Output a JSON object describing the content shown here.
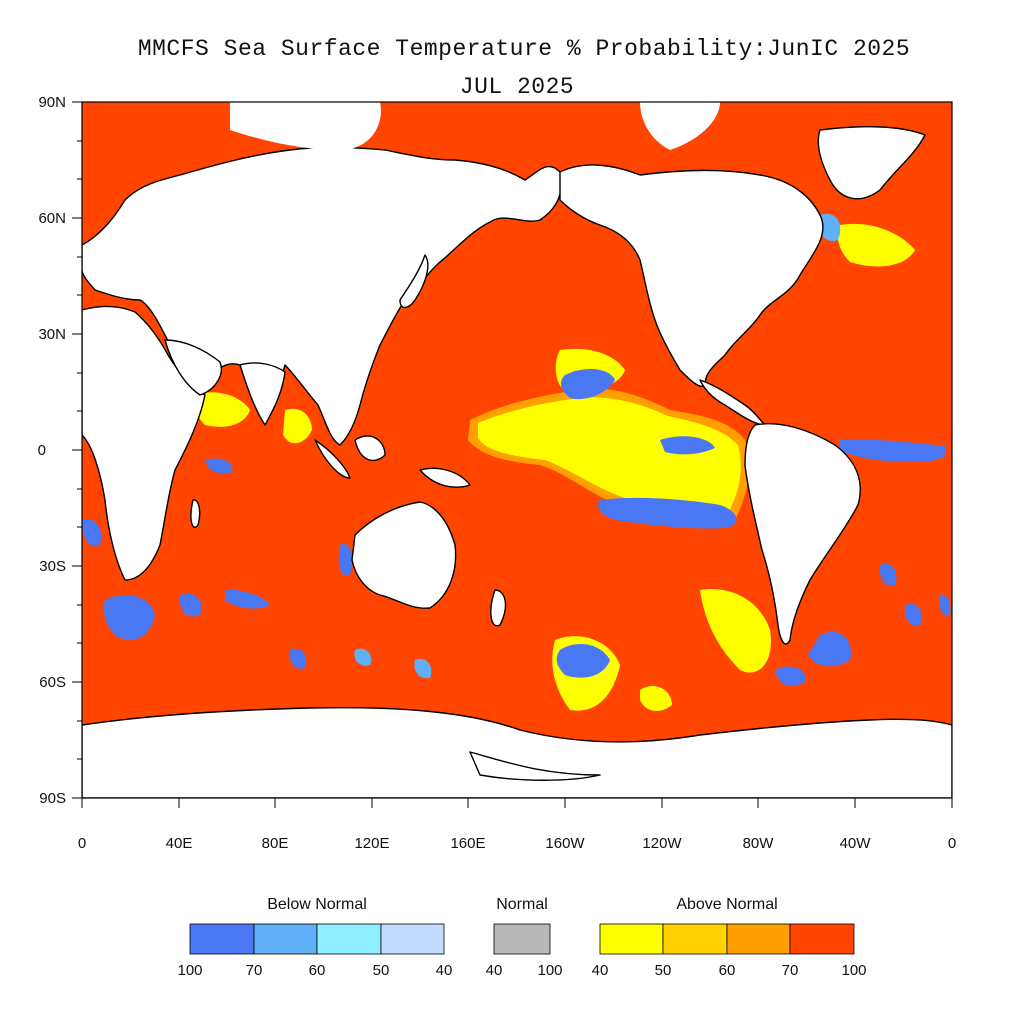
{
  "title": {
    "line1": "MMCFS Sea Surface Temperature % Probability:JunIC 2025",
    "line2": "JUL 2025"
  },
  "axes": {
    "y_ticks": [
      "90N",
      "60N",
      "30N",
      "0",
      "30S",
      "60S",
      "90S"
    ],
    "x_ticks": [
      "0",
      "40E",
      "80E",
      "120E",
      "160E",
      "160W",
      "120W",
      "80W",
      "40W",
      "0"
    ]
  },
  "colors": {
    "below_100_70": "#4a78f5",
    "below_70_60": "#5fb0f7",
    "below_60_50": "#8fefff",
    "below_50_40": "#c4dcff",
    "normal": "#b8b8b8",
    "above_40_50": "#ffff00",
    "above_50_60": "#ffd200",
    "above_60_70": "#ffa000",
    "above_70_100": "#ff4500",
    "land": "#ffffff",
    "coast": "#000000"
  },
  "legend": {
    "below": {
      "title": "Below Normal",
      "ticks": [
        "100",
        "70",
        "60",
        "50",
        "40"
      ]
    },
    "normal": {
      "title": "Normal",
      "ticks": [
        "40",
        "100"
      ]
    },
    "above": {
      "title": "Above Normal",
      "ticks": [
        "40",
        "50",
        "60",
        "70",
        "100"
      ]
    }
  }
}
